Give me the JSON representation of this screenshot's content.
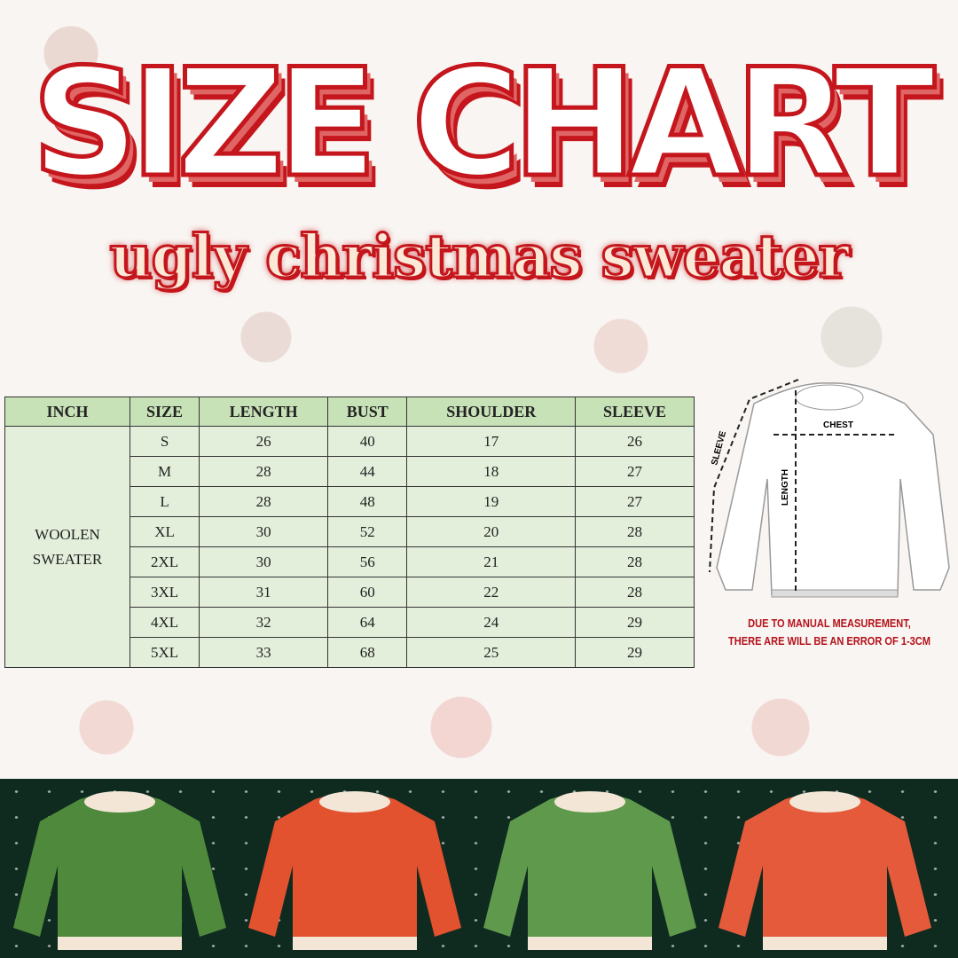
{
  "title": "SIZE CHART",
  "subtitle": "ugly christmas sweater",
  "table": {
    "headers": [
      "INCH",
      "SIZE",
      "LENGTH",
      "BUST",
      "SHOULDER",
      "SLEEVE"
    ],
    "category": "WOOLEN SWEATER",
    "rows": [
      [
        "S",
        "26",
        "40",
        "17",
        "26"
      ],
      [
        "M",
        "28",
        "44",
        "18",
        "27"
      ],
      [
        "L",
        "28",
        "48",
        "19",
        "27"
      ],
      [
        "XL",
        "30",
        "52",
        "20",
        "28"
      ],
      [
        "2XL",
        "30",
        "56",
        "21",
        "28"
      ],
      [
        "3XL",
        "31",
        "60",
        "22",
        "28"
      ],
      [
        "4XL",
        "32",
        "64",
        "24",
        "29"
      ],
      [
        "5XL",
        "33",
        "68",
        "25",
        "29"
      ]
    ]
  },
  "diagram": {
    "chest": "CHEST",
    "length": "LENGTH",
    "sleeve": "SLEEVE"
  },
  "note": {
    "line1": "DUE TO MANUAL MEASUREMENT,",
    "line2": "THERE ARE WILL BE AN ERROR OF 1-3CM"
  },
  "colors": {
    "title_red": "#c4161c",
    "header_green": "#c8e2b8",
    "cell_green": "#e3efdb",
    "band": "#0f2a1f"
  },
  "sweaters": [
    {
      "color": "#4f8a3c"
    },
    {
      "color": "#e2522f"
    },
    {
      "color": "#5f9a4c"
    },
    {
      "color": "#e45a3a"
    }
  ]
}
